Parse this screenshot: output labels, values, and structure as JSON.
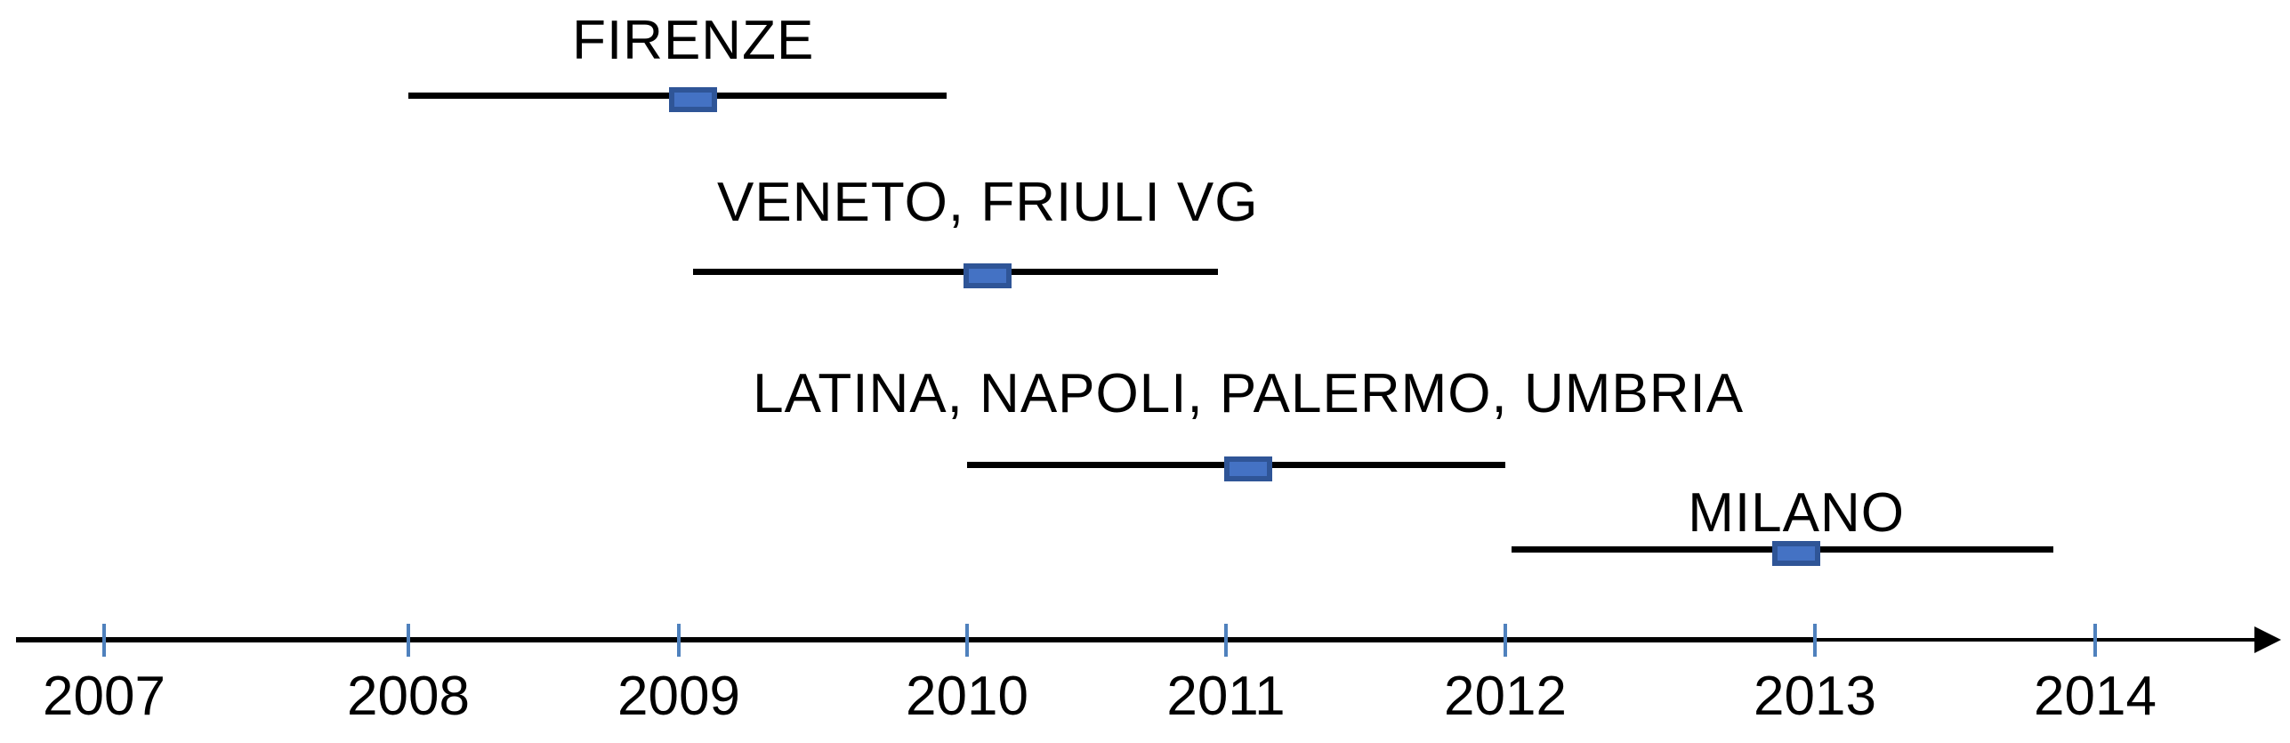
{
  "chart_data": {
    "type": "gantt",
    "title": "",
    "description": "Horizontal timeline of Italian city/region roll-outs: black duration lines with blue square markers over a year axis",
    "x_axis": {
      "label": "",
      "tick_years": [
        "2007",
        "2008",
        "2009",
        "2010",
        "2011",
        "2012",
        "2013",
        "2014"
      ],
      "range": [
        2006.7,
        2014.65
      ],
      "arrow": "right",
      "grid": false
    },
    "rows": [
      {
        "label": "FIRENZE",
        "start": 2008.0,
        "end": 2009.93,
        "marker": 2009.05
      },
      {
        "label": "VENETO, FRIULI VG",
        "start": 2009.05,
        "end": 2010.97,
        "marker": 2010.08
      },
      {
        "label": "LATINA, NAPOLI, PALERMO, UMBRIA",
        "start": 2010.0,
        "end": 2012.0,
        "marker": 2011.08
      },
      {
        "label": "MILANO",
        "start": 2012.02,
        "end": 2013.85,
        "marker": 2012.94
      }
    ],
    "legend": null,
    "colors": {
      "row_line": "#000000",
      "marker_fill": "#4472c4",
      "marker_border": "#2f5597",
      "axis_line": "#000000",
      "tick": "#4f81bd",
      "text": "#000000",
      "background": "#ffffff"
    }
  }
}
